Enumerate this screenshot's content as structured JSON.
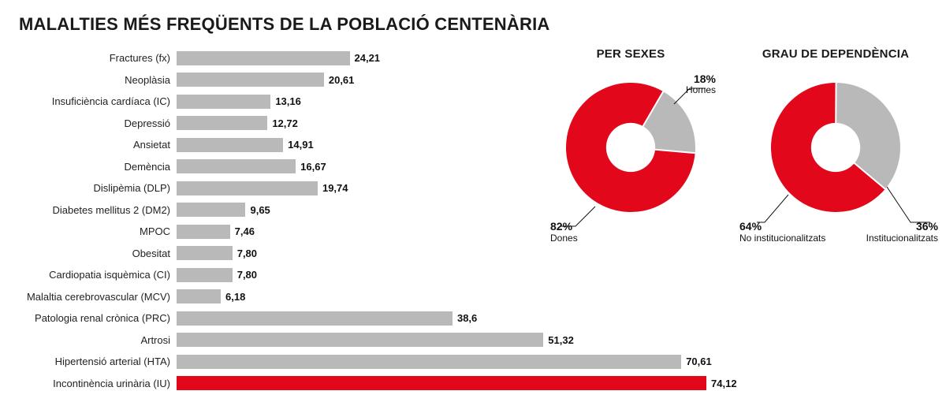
{
  "title": "MALALTIES MÉS FREQÜENTS DE LA POBLACIÓ CENTENÀRIA",
  "bar_chart": {
    "type": "bar",
    "xlim": [
      0,
      75
    ],
    "bar_color": "#b9b9b9",
    "highlight_color": "#e3071c",
    "label_fontsize": 13,
    "value_fontsize": 13,
    "items": [
      {
        "label": "Fractures (fx)",
        "value": 24.21,
        "display": "24,21",
        "highlight": false
      },
      {
        "label": "Neoplàsia",
        "value": 20.61,
        "display": "20,61",
        "highlight": false
      },
      {
        "label": "Insuficiència cardíaca (IC)",
        "value": 13.16,
        "display": "13,16",
        "highlight": false
      },
      {
        "label": "Depressió",
        "value": 12.72,
        "display": "12,72",
        "highlight": false
      },
      {
        "label": "Ansietat",
        "value": 14.91,
        "display": "14,91",
        "highlight": false
      },
      {
        "label": "Demència",
        "value": 16.67,
        "display": "16,67",
        "highlight": false
      },
      {
        "label": "Dislipèmia (DLP)",
        "value": 19.74,
        "display": "19,74",
        "highlight": false
      },
      {
        "label": "Diabetes mellitus 2 (DM2)",
        "value": 9.65,
        "display": "9,65",
        "highlight": false
      },
      {
        "label": "MPOC",
        "value": 7.46,
        "display": "7,46",
        "highlight": false
      },
      {
        "label": "Obesitat",
        "value": 7.8,
        "display": "7,80",
        "highlight": false
      },
      {
        "label": "Cardiopatia isquèmica (CI)",
        "value": 7.8,
        "display": "7,80",
        "highlight": false
      },
      {
        "label": "Malaltia cerebrovascular (MCV)",
        "value": 6.18,
        "display": "6,18",
        "highlight": false
      },
      {
        "label": "Patologia renal crònica (PRC)",
        "value": 38.6,
        "display": "38,6",
        "highlight": false
      },
      {
        "label": "Artrosi",
        "value": 51.32,
        "display": "51,32",
        "highlight": false
      },
      {
        "label": "Hipertensió arterial (HTA)",
        "value": 70.61,
        "display": "70,61",
        "highlight": false
      },
      {
        "label": "Incontinència urinària (IU)",
        "value": 74.12,
        "display": "74,12",
        "highlight": true
      }
    ]
  },
  "donut_sexes": {
    "title": "PER SEXES",
    "type": "donut",
    "inner_ratio": 0.38,
    "background": "#ffffff",
    "slices": [
      {
        "pct": 82,
        "label_pct": "82%",
        "label_name": "Dones",
        "color": "#e3071c"
      },
      {
        "pct": 18,
        "label_pct": "18%",
        "label_name": "Homes",
        "color": "#b9b9b9"
      }
    ]
  },
  "donut_depend": {
    "title": "GRAU DE DEPENDÈNCIA",
    "type": "donut",
    "inner_ratio": 0.38,
    "background": "#ffffff",
    "slices": [
      {
        "pct": 64,
        "label_pct": "64%",
        "label_name": "No institucionalitzats",
        "color": "#e3071c"
      },
      {
        "pct": 36,
        "label_pct": "36%",
        "label_name": "Institucionalitzats",
        "color": "#b9b9b9"
      }
    ]
  }
}
